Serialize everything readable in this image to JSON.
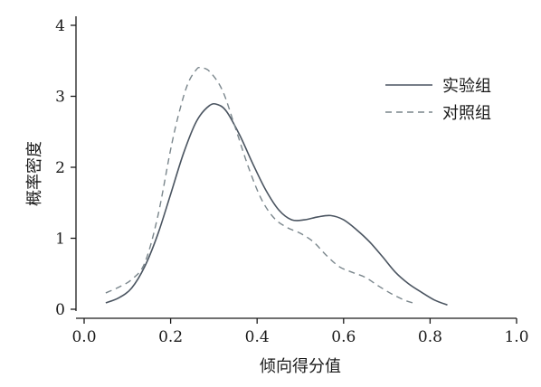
{
  "chart_data": {
    "type": "line",
    "title": "",
    "xlabel": "倾向得分值",
    "ylabel": "概率密度",
    "xlim": [
      0.0,
      1.0
    ],
    "ylim": [
      0,
      4
    ],
    "x_ticks": [
      "0.0",
      "0.2",
      "0.4",
      "0.6",
      "0.8",
      "1.0"
    ],
    "y_ticks": [
      "0",
      "1",
      "2",
      "3",
      "4"
    ],
    "grid": false,
    "legend_position": "top-right",
    "series": [
      {
        "name": "实验组",
        "style": "solid",
        "color": "#4a5460",
        "x": [
          0.05,
          0.08,
          0.11,
          0.14,
          0.17,
          0.2,
          0.23,
          0.26,
          0.29,
          0.31,
          0.33,
          0.36,
          0.39,
          0.42,
          0.45,
          0.48,
          0.51,
          0.54,
          0.57,
          0.6,
          0.63,
          0.66,
          0.69,
          0.72,
          0.75,
          0.78,
          0.81,
          0.84
        ],
        "values": [
          0.09,
          0.16,
          0.3,
          0.6,
          1.05,
          1.62,
          2.2,
          2.65,
          2.87,
          2.88,
          2.78,
          2.45,
          2.05,
          1.68,
          1.4,
          1.26,
          1.26,
          1.3,
          1.32,
          1.26,
          1.12,
          0.95,
          0.74,
          0.52,
          0.36,
          0.24,
          0.13,
          0.06
        ]
      },
      {
        "name": "对照组",
        "style": "dashed",
        "color": "#7a868c",
        "x": [
          0.05,
          0.08,
          0.11,
          0.14,
          0.17,
          0.2,
          0.22,
          0.24,
          0.26,
          0.27,
          0.29,
          0.32,
          0.35,
          0.38,
          0.41,
          0.44,
          0.47,
          0.5,
          0.53,
          0.56,
          0.59,
          0.62,
          0.65,
          0.68,
          0.71,
          0.74,
          0.76
        ],
        "values": [
          0.23,
          0.31,
          0.42,
          0.65,
          1.3,
          2.25,
          2.78,
          3.18,
          3.38,
          3.4,
          3.35,
          3.08,
          2.55,
          2.0,
          1.55,
          1.28,
          1.15,
          1.07,
          0.95,
          0.76,
          0.6,
          0.52,
          0.45,
          0.33,
          0.22,
          0.13,
          0.09
        ]
      }
    ]
  }
}
